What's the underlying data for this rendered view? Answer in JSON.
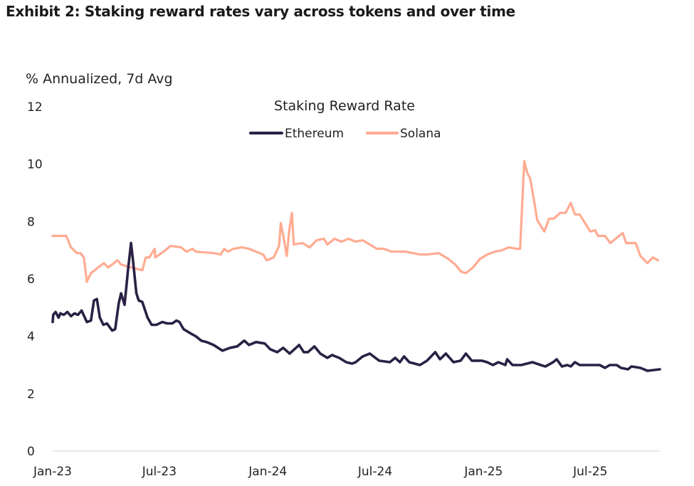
{
  "exhibit_title": "Exhibit 2: Staking reward rates vary across tokens and over time",
  "chart_data": {
    "type": "line",
    "title": "Staking Reward Rate",
    "ylabel": "% Annualized, 7d Avg",
    "xlabel": "",
    "ylim": [
      0,
      12
    ],
    "yticks": [
      "0",
      "2",
      "4",
      "6",
      "8",
      "10",
      "12"
    ],
    "xlim": [
      "2023-01-01",
      "2025-10-27"
    ],
    "xticks": [
      {
        "date": "2023-01-01",
        "label": "Jan-23"
      },
      {
        "date": "2023-07-01",
        "label": "Jul-23"
      },
      {
        "date": "2024-01-01",
        "label": "Jan-24"
      },
      {
        "date": "2024-07-01",
        "label": "Jul-24"
      },
      {
        "date": "2025-01-01",
        "label": "Jan-25"
      },
      {
        "date": "2025-07-01",
        "label": "Jul-25"
      }
    ],
    "grid": false,
    "legend": "top-center",
    "series": [
      {
        "name": "Ethereum",
        "color": "#2a2145",
        "points": [
          [
            "2023-01-01",
            4.5
          ],
          [
            "2023-01-02",
            4.75
          ],
          [
            "2023-01-06",
            4.85
          ],
          [
            "2023-01-11",
            4.65
          ],
          [
            "2023-01-14",
            4.8
          ],
          [
            "2023-01-20",
            4.75
          ],
          [
            "2023-01-26",
            4.85
          ],
          [
            "2023-02-01",
            4.7
          ],
          [
            "2023-02-07",
            4.8
          ],
          [
            "2023-02-13",
            4.75
          ],
          [
            "2023-02-19",
            4.9
          ],
          [
            "2023-02-28",
            4.5
          ],
          [
            "2023-03-07",
            4.55
          ],
          [
            "2023-03-12",
            5.25
          ],
          [
            "2023-03-17",
            5.3
          ],
          [
            "2023-03-22",
            4.65
          ],
          [
            "2023-03-28",
            4.4
          ],
          [
            "2023-04-03",
            4.45
          ],
          [
            "2023-04-12",
            4.2
          ],
          [
            "2023-04-17",
            4.25
          ],
          [
            "2023-04-23",
            5.15
          ],
          [
            "2023-04-27",
            5.5
          ],
          [
            "2023-05-03",
            5.1
          ],
          [
            "2023-05-09",
            6.35
          ],
          [
            "2023-05-14",
            7.25
          ],
          [
            "2023-05-17",
            6.7
          ],
          [
            "2023-05-23",
            5.5
          ],
          [
            "2023-05-27",
            5.25
          ],
          [
            "2023-06-02",
            5.2
          ],
          [
            "2023-06-11",
            4.65
          ],
          [
            "2023-06-18",
            4.4
          ],
          [
            "2023-06-26",
            4.4
          ],
          [
            "2023-07-06",
            4.5
          ],
          [
            "2023-07-14",
            4.45
          ],
          [
            "2023-07-23",
            4.45
          ],
          [
            "2023-07-30",
            4.55
          ],
          [
            "2023-08-04",
            4.5
          ],
          [
            "2023-08-11",
            4.25
          ],
          [
            "2023-08-23",
            4.1
          ],
          [
            "2023-09-01",
            4.0
          ],
          [
            "2023-09-10",
            3.85
          ],
          [
            "2023-09-19",
            3.8
          ],
          [
            "2023-10-01",
            3.7
          ],
          [
            "2023-10-16",
            3.5
          ],
          [
            "2023-10-29",
            3.6
          ],
          [
            "2023-11-10",
            3.65
          ],
          [
            "2023-11-22",
            3.85
          ],
          [
            "2023-11-30",
            3.7
          ],
          [
            "2023-12-12",
            3.8
          ],
          [
            "2023-12-27",
            3.75
          ],
          [
            "2024-01-05",
            3.55
          ],
          [
            "2024-01-17",
            3.45
          ],
          [
            "2024-01-27",
            3.6
          ],
          [
            "2024-02-07",
            3.4
          ],
          [
            "2024-02-23",
            3.7
          ],
          [
            "2024-03-02",
            3.45
          ],
          [
            "2024-03-09",
            3.45
          ],
          [
            "2024-03-20",
            3.65
          ],
          [
            "2024-03-30",
            3.4
          ],
          [
            "2024-04-11",
            3.25
          ],
          [
            "2024-04-19",
            3.35
          ],
          [
            "2024-05-01",
            3.25
          ],
          [
            "2024-05-13",
            3.1
          ],
          [
            "2024-05-23",
            3.05
          ],
          [
            "2024-05-29",
            3.1
          ],
          [
            "2024-06-07",
            3.25
          ],
          [
            "2024-06-10",
            3.3
          ],
          [
            "2024-06-22",
            3.4
          ],
          [
            "2024-07-08",
            3.15
          ],
          [
            "2024-07-26",
            3.1
          ],
          [
            "2024-08-04",
            3.25
          ],
          [
            "2024-08-12",
            3.1
          ],
          [
            "2024-08-19",
            3.3
          ],
          [
            "2024-08-28",
            3.1
          ],
          [
            "2024-09-15",
            3.0
          ],
          [
            "2024-09-27",
            3.15
          ],
          [
            "2024-10-11",
            3.45
          ],
          [
            "2024-10-19",
            3.2
          ],
          [
            "2024-10-29",
            3.4
          ],
          [
            "2024-11-11",
            3.1
          ],
          [
            "2024-11-23",
            3.15
          ],
          [
            "2024-12-02",
            3.4
          ],
          [
            "2024-12-12",
            3.15
          ],
          [
            "2024-12-29",
            3.15
          ],
          [
            "2025-01-07",
            3.1
          ],
          [
            "2025-01-17",
            3.0
          ],
          [
            "2025-01-26",
            3.1
          ],
          [
            "2025-02-07",
            3.0
          ],
          [
            "2025-02-10",
            3.2
          ],
          [
            "2025-02-19",
            3.0
          ],
          [
            "2025-03-06",
            3.0
          ],
          [
            "2025-03-25",
            3.1
          ],
          [
            "2025-04-08",
            3.0
          ],
          [
            "2025-04-16",
            2.95
          ],
          [
            "2025-04-29",
            3.1
          ],
          [
            "2025-05-05",
            3.2
          ],
          [
            "2025-05-14",
            2.95
          ],
          [
            "2025-05-23",
            3.0
          ],
          [
            "2025-05-29",
            2.95
          ],
          [
            "2025-06-05",
            3.1
          ],
          [
            "2025-06-13",
            3.0
          ],
          [
            "2025-07-05",
            3.0
          ],
          [
            "2025-07-17",
            3.0
          ],
          [
            "2025-07-26",
            2.9
          ],
          [
            "2025-08-03",
            3.0
          ],
          [
            "2025-08-15",
            3.0
          ],
          [
            "2025-08-22",
            2.9
          ],
          [
            "2025-09-03",
            2.85
          ],
          [
            "2025-09-09",
            2.95
          ],
          [
            "2025-09-24",
            2.9
          ],
          [
            "2025-10-06",
            2.8
          ],
          [
            "2025-10-27",
            2.85
          ]
        ]
      },
      {
        "name": "Solana",
        "color": "#ffab91",
        "points": [
          [
            "2023-01-01",
            7.5
          ],
          [
            "2023-01-24",
            7.5
          ],
          [
            "2023-02-01",
            7.1
          ],
          [
            "2023-02-11",
            6.9
          ],
          [
            "2023-02-17",
            6.9
          ],
          [
            "2023-02-23",
            6.75
          ],
          [
            "2023-02-28",
            5.9
          ],
          [
            "2023-03-07",
            6.2
          ],
          [
            "2023-03-19",
            6.4
          ],
          [
            "2023-03-29",
            6.55
          ],
          [
            "2023-04-05",
            6.4
          ],
          [
            "2023-04-15",
            6.55
          ],
          [
            "2023-04-21",
            6.65
          ],
          [
            "2023-04-27",
            6.5
          ],
          [
            "2023-05-15",
            6.4
          ],
          [
            "2023-06-02",
            6.3
          ],
          [
            "2023-06-08",
            6.75
          ],
          [
            "2023-06-14",
            6.75
          ],
          [
            "2023-06-23",
            7.05
          ],
          [
            "2023-06-24",
            6.75
          ],
          [
            "2023-07-08",
            6.95
          ],
          [
            "2023-07-20",
            7.15
          ],
          [
            "2023-08-07",
            7.1
          ],
          [
            "2023-08-16",
            6.95
          ],
          [
            "2023-08-26",
            7.05
          ],
          [
            "2023-09-01",
            6.95
          ],
          [
            "2023-10-01",
            6.9
          ],
          [
            "2023-10-13",
            6.85
          ],
          [
            "2023-10-19",
            7.05
          ],
          [
            "2023-10-25",
            6.95
          ],
          [
            "2023-11-04",
            7.05
          ],
          [
            "2023-11-18",
            7.1
          ],
          [
            "2023-11-30",
            7.05
          ],
          [
            "2023-12-12",
            6.95
          ],
          [
            "2023-12-24",
            6.85
          ],
          [
            "2023-12-30",
            6.65
          ],
          [
            "2024-01-11",
            6.75
          ],
          [
            "2024-01-20",
            7.15
          ],
          [
            "2024-01-23",
            7.95
          ],
          [
            "2024-01-29",
            7.3
          ],
          [
            "2024-02-02",
            6.8
          ],
          [
            "2024-02-07",
            7.8
          ],
          [
            "2024-02-11",
            8.3
          ],
          [
            "2024-02-14",
            7.2
          ],
          [
            "2024-02-29",
            7.25
          ],
          [
            "2024-03-12",
            7.1
          ],
          [
            "2024-03-24",
            7.35
          ],
          [
            "2024-04-05",
            7.4
          ],
          [
            "2024-04-11",
            7.2
          ],
          [
            "2024-04-23",
            7.4
          ],
          [
            "2024-05-05",
            7.3
          ],
          [
            "2024-05-17",
            7.4
          ],
          [
            "2024-05-29",
            7.3
          ],
          [
            "2024-06-10",
            7.35
          ],
          [
            "2024-06-22",
            7.2
          ],
          [
            "2024-07-04",
            7.05
          ],
          [
            "2024-07-16",
            7.05
          ],
          [
            "2024-07-29",
            6.95
          ],
          [
            "2024-08-10",
            6.95
          ],
          [
            "2024-08-22",
            6.95
          ],
          [
            "2024-09-03",
            6.9
          ],
          [
            "2024-09-15",
            6.85
          ],
          [
            "2024-09-27",
            6.85
          ],
          [
            "2024-10-17",
            6.9
          ],
          [
            "2024-11-02",
            6.7
          ],
          [
            "2024-11-14",
            6.5
          ],
          [
            "2024-11-24",
            6.25
          ],
          [
            "2024-12-02",
            6.2
          ],
          [
            "2024-12-14",
            6.4
          ],
          [
            "2024-12-26",
            6.7
          ],
          [
            "2025-01-07",
            6.85
          ],
          [
            "2025-01-20",
            6.95
          ],
          [
            "2025-02-01",
            7.0
          ],
          [
            "2025-02-13",
            7.1
          ],
          [
            "2025-02-25",
            7.05
          ],
          [
            "2025-03-04",
            7.05
          ],
          [
            "2025-03-11",
            10.1
          ],
          [
            "2025-03-16",
            9.7
          ],
          [
            "2025-03-21",
            9.5
          ],
          [
            "2025-03-27",
            8.8
          ],
          [
            "2025-04-02",
            8.05
          ],
          [
            "2025-04-14",
            7.65
          ],
          [
            "2025-04-22",
            8.1
          ],
          [
            "2025-04-30",
            8.1
          ],
          [
            "2025-05-11",
            8.3
          ],
          [
            "2025-05-20",
            8.3
          ],
          [
            "2025-05-29",
            8.65
          ],
          [
            "2025-06-05",
            8.25
          ],
          [
            "2025-06-13",
            8.25
          ],
          [
            "2025-06-22",
            7.95
          ],
          [
            "2025-07-01",
            7.65
          ],
          [
            "2025-07-09",
            7.7
          ],
          [
            "2025-07-14",
            7.5
          ],
          [
            "2025-07-26",
            7.5
          ],
          [
            "2025-08-04",
            7.25
          ],
          [
            "2025-08-16",
            7.45
          ],
          [
            "2025-08-25",
            7.6
          ],
          [
            "2025-08-31",
            7.25
          ],
          [
            "2025-09-16",
            7.25
          ],
          [
            "2025-09-24",
            6.8
          ],
          [
            "2025-10-06",
            6.55
          ],
          [
            "2025-10-15",
            6.75
          ],
          [
            "2025-10-24",
            6.65
          ]
        ]
      }
    ]
  }
}
